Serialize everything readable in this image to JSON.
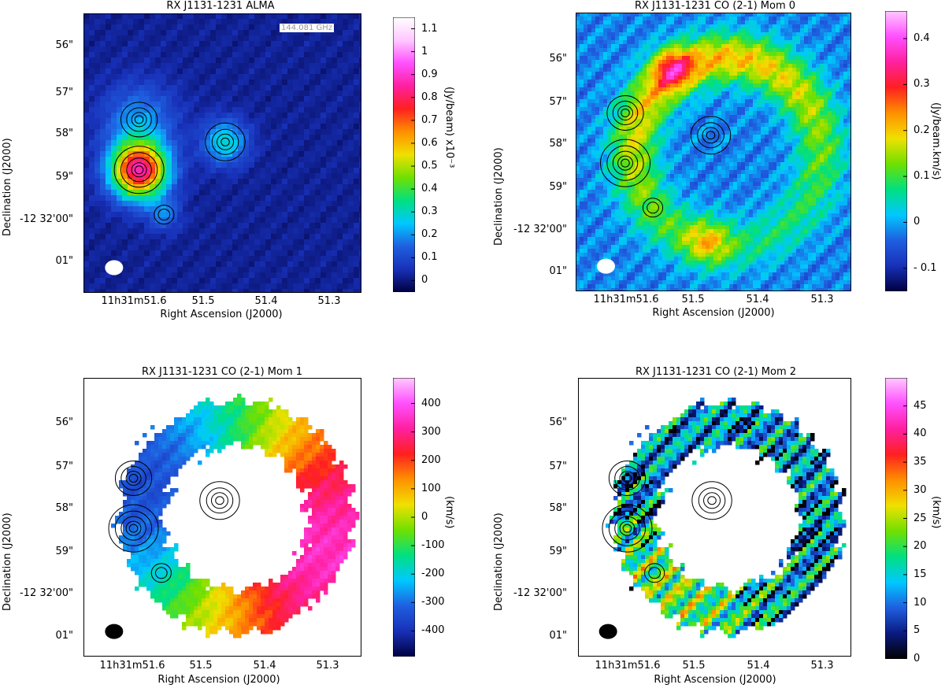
{
  "chart_data": [
    {
      "type": "heatmap",
      "id": "alma",
      "title": "RX J1131-1231 ALMA",
      "annotation": "144.081 GHz",
      "xlabel": "Right Ascension (J2000)",
      "ylabel": "Declination (J2000)",
      "x_ticks": [
        "11h31m51.6",
        "51.5",
        "51.4",
        "51.3"
      ],
      "y_ticks": [
        "56\"",
        "57\"",
        "58\"",
        "59\"",
        "-12 32'00\"",
        "01\""
      ],
      "colorbar_label": "(Jy/beam)  x10⁻³",
      "colorbar_ticks": [
        "1.1",
        "1",
        "0.9",
        "0.8",
        "0.7",
        "0.6",
        "0.5",
        "0.4",
        "0.3",
        "0.2",
        "0.1",
        "0"
      ],
      "colorbar_range": [
        -0.05,
        1.15
      ],
      "colormap": [
        "#000040",
        "#1830b8",
        "#1f5fe0",
        "#00c8ff",
        "#00e080",
        "#70e000",
        "#f0e000",
        "#ff9000",
        "#ff2020",
        "#ff20a0",
        "#ff50ff",
        "#ffc8ff",
        "#ffffff"
      ],
      "background": 0.0
    },
    {
      "type": "heatmap",
      "id": "mom0",
      "title": "RX J1131-1231 CO (2-1) Mom 0",
      "xlabel": "Right Ascension (J2000)",
      "ylabel": "Declination (J2000)",
      "x_ticks": [
        "11h31m51.6",
        "51.5",
        "51.4",
        "51.3"
      ],
      "y_ticks": [
        "56\"",
        "57\"",
        "58\"",
        "59\"",
        "-12 32'00\"",
        "01\""
      ],
      "colorbar_label": "(Jy/beam.km/s)",
      "colorbar_ticks": [
        "0.4",
        "0.3",
        "0.2",
        "0.1",
        "0",
        "- 0.1"
      ],
      "colorbar_range": [
        -0.15,
        0.46
      ],
      "colormap": [
        "#000040",
        "#1830b8",
        "#1f5fe0",
        "#00c8ff",
        "#00e080",
        "#70e000",
        "#f0e000",
        "#ff9000",
        "#ff2020",
        "#ff20a0",
        "#ff50ff",
        "#ffc8ff"
      ],
      "background": 0.0
    },
    {
      "type": "heatmap",
      "id": "mom1",
      "title": "RX J1131-1231 CO (2-1) Mom 1",
      "xlabel": "Right Ascension (J2000)",
      "ylabel": "Declination (J2000)",
      "x_ticks": [
        "11h31m51.6",
        "51.5",
        "51.4",
        "51.3"
      ],
      "y_ticks": [
        "56\"",
        "57\"",
        "58\"",
        "59\"",
        "-12 32'00\"",
        "01\""
      ],
      "colorbar_label": "(km/s)",
      "colorbar_ticks": [
        "400",
        "300",
        "200",
        "100",
        "0",
        "-100",
        "-200",
        "-300",
        "-400"
      ],
      "colorbar_range": [
        -490,
        490
      ],
      "colormap": [
        "#000040",
        "#1830b8",
        "#1f5fe0",
        "#00c8ff",
        "#00e080",
        "#70e000",
        "#f0e000",
        "#ff9000",
        "#ff2020",
        "#ff20a0",
        "#ff50ff",
        "#ffc8ff"
      ]
    },
    {
      "type": "heatmap",
      "id": "mom2",
      "title": "RX J1131-1231 CO (2-1) Mom 2",
      "xlabel": "Right Ascension (J2000)",
      "ylabel": "Declination (J2000)",
      "x_ticks": [
        "11h31m51.6",
        "51.5",
        "51.4",
        "51.3"
      ],
      "y_ticks": [
        "56\"",
        "57\"",
        "58\"",
        "59\"",
        "-12 32'00\"",
        "01\""
      ],
      "colorbar_label": "(km/s)",
      "colorbar_ticks": [
        "45",
        "40",
        "35",
        "30",
        "25",
        "20",
        "15",
        "10",
        "5",
        "0"
      ],
      "colorbar_range": [
        0,
        50
      ],
      "colormap": [
        "#000000",
        "#0a1a80",
        "#1f5fe0",
        "#00c8ff",
        "#00e080",
        "#70e000",
        "#f0e000",
        "#ff9000",
        "#ff2020",
        "#ff20a0",
        "#ff50ff",
        "#ffc8ff"
      ]
    }
  ]
}
